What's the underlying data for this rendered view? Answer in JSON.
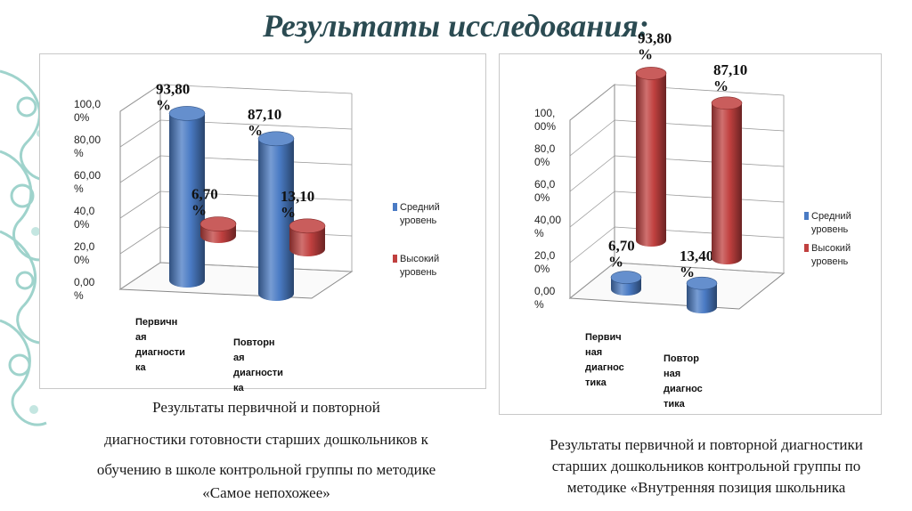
{
  "title": "Результаты исследования:",
  "colors": {
    "blue": "#4a7bc4",
    "red": "#c0403f",
    "title": "#2b4b52",
    "ornament": "#9fd3cc"
  },
  "chart_data": [
    {
      "type": "bar",
      "categories": [
        [
          "Первичн",
          "ая",
          "диагности",
          "ка"
        ],
        [
          "Повторн",
          "ая",
          "диагности",
          "ка"
        ]
      ],
      "series": [
        {
          "name": [
            "Средний",
            "уровень"
          ],
          "values": [
            93.8,
            87.1
          ],
          "labels": [
            [
              "93,80",
              "%"
            ],
            [
              "87,10",
              "%"
            ]
          ]
        },
        {
          "name": [
            "Высокий",
            "уровень"
          ],
          "values": [
            6.7,
            13.1
          ],
          "labels": [
            [
              "6,70",
              "%"
            ],
            [
              "13,10",
              "%"
            ]
          ]
        }
      ],
      "yticks": [
        [
          "0,00",
          "%"
        ],
        [
          "20,0",
          "0%"
        ],
        [
          "40,0",
          "0%"
        ],
        [
          "60,00",
          "%"
        ],
        [
          "80,00",
          "%"
        ],
        [
          "100,0",
          "0%"
        ]
      ],
      "ylim": [
        0,
        100
      ],
      "grid": true,
      "legend": "right",
      "caption": [
        "Результаты первичной и повторной",
        "диагностики готовности старших дошкольников к",
        "обучению в школе контрольной группы по методике",
        "«Самое непохожее»"
      ]
    },
    {
      "type": "bar",
      "categories": [
        [
          "Первич",
          "ная",
          "диагнос",
          "тика"
        ],
        [
          "Повтор",
          "ная",
          "диагнос",
          "тика"
        ]
      ],
      "series": [
        {
          "name": [
            "Средний",
            "уровень"
          ],
          "values": [
            6.7,
            13.4
          ],
          "labels": [
            [
              "6,70",
              "%"
            ],
            [
              "13,40",
              "%"
            ]
          ]
        },
        {
          "name": [
            "Высокий",
            "уровень"
          ],
          "values": [
            93.8,
            87.1
          ],
          "labels": [
            [
              "93,80",
              "%"
            ],
            [
              "87,10",
              "%"
            ]
          ]
        }
      ],
      "yticks": [
        [
          "0,00",
          "%"
        ],
        [
          "20,0",
          "0%"
        ],
        [
          "40,00",
          "%"
        ],
        [
          "60,0",
          "0%"
        ],
        [
          "80,0",
          "0%"
        ],
        [
          "100,",
          "00%"
        ]
      ],
      "ylim": [
        0,
        100
      ],
      "grid": true,
      "legend": "right",
      "caption": [
        "Результаты первичной и повторной диагностики",
        "старших дошкольников контрольной группы по",
        "методике «Внутренняя позиция школьника"
      ]
    }
  ]
}
